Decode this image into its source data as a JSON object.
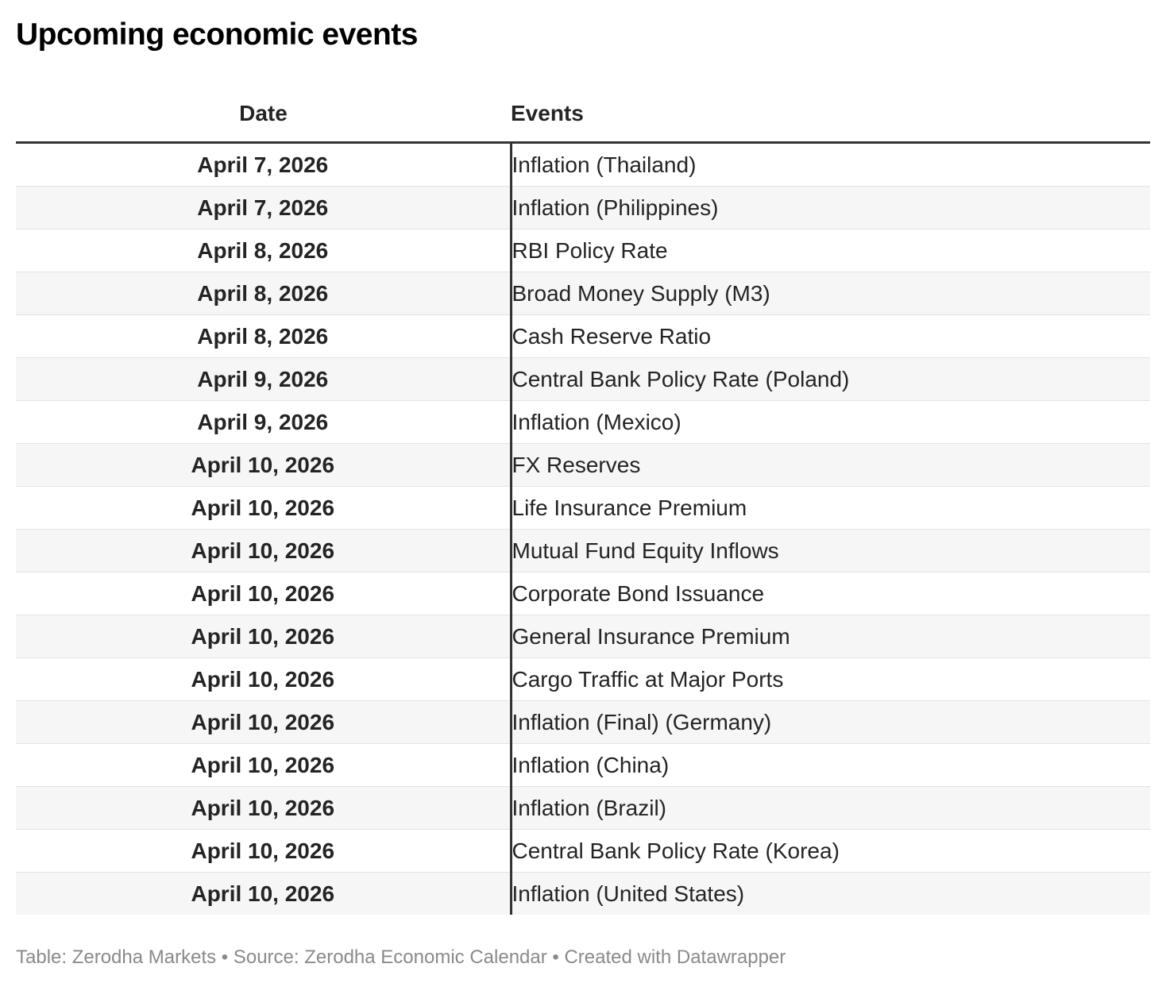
{
  "title": "Upcoming economic events",
  "table": {
    "columns": {
      "date": "Date",
      "events": "Events"
    },
    "rows": [
      {
        "date": "April 7, 2026",
        "event": "Inflation (Thailand)"
      },
      {
        "date": "April 7, 2026",
        "event": "Inflation (Philippines)"
      },
      {
        "date": "April 8, 2026",
        "event": "RBI Policy Rate"
      },
      {
        "date": "April 8, 2026",
        "event": "Broad Money Supply (M3)"
      },
      {
        "date": "April 8, 2026",
        "event": "Cash Reserve Ratio"
      },
      {
        "date": "April 9, 2026",
        "event": "Central Bank Policy Rate (Poland)"
      },
      {
        "date": "April 9, 2026",
        "event": "Inflation (Mexico)"
      },
      {
        "date": "April 10, 2026",
        "event": "FX Reserves"
      },
      {
        "date": "April 10, 2026",
        "event": "Life Insurance Premium"
      },
      {
        "date": "April 10, 2026",
        "event": "Mutual Fund Equity Inflows"
      },
      {
        "date": "April 10, 2026",
        "event": "Corporate Bond Issuance"
      },
      {
        "date": "April 10, 2026",
        "event": "General Insurance Premium"
      },
      {
        "date": "April 10, 2026",
        "event": "Cargo Traffic at Major Ports"
      },
      {
        "date": "April 10, 2026",
        "event": "Inflation (Final) (Germany)"
      },
      {
        "date": "April 10, 2026",
        "event": "Inflation (China)"
      },
      {
        "date": "April 10, 2026",
        "event": "Inflation (Brazil)"
      },
      {
        "date": "April 10, 2026",
        "event": "Central Bank Policy Rate (Korea)"
      },
      {
        "date": "April 10, 2026",
        "event": "Inflation (United States)"
      }
    ]
  },
  "footer": {
    "text": "Table: Zerodha Markets • Source: Zerodha Economic Calendar • Created with Datawrapper"
  },
  "colors": {
    "heavy_border": "#333333",
    "row_divider": "#e3e3e3",
    "row_stripe": "#f6f6f6",
    "text": "#242424",
    "footer_text": "#8a8a8a",
    "background": "#ffffff"
  },
  "chart_data": {
    "type": "table",
    "title": "Upcoming economic events",
    "columns": [
      "Date",
      "Events"
    ],
    "rows": [
      [
        "April 7, 2026",
        "Inflation (Thailand)"
      ],
      [
        "April 7, 2026",
        "Inflation (Philippines)"
      ],
      [
        "April 8, 2026",
        "RBI Policy Rate"
      ],
      [
        "April 8, 2026",
        "Broad Money Supply (M3)"
      ],
      [
        "April 8, 2026",
        "Cash Reserve Ratio"
      ],
      [
        "April 9, 2026",
        "Central Bank Policy Rate (Poland)"
      ],
      [
        "April 9, 2026",
        "Inflation (Mexico)"
      ],
      [
        "April 10, 2026",
        "FX Reserves"
      ],
      [
        "April 10, 2026",
        "Life Insurance Premium"
      ],
      [
        "April 10, 2026",
        "Mutual Fund Equity Inflows"
      ],
      [
        "April 10, 2026",
        "Corporate Bond Issuance"
      ],
      [
        "April 10, 2026",
        "General Insurance Premium"
      ],
      [
        "April 10, 2026",
        "Cargo Traffic at Major Ports"
      ],
      [
        "April 10, 2026",
        "Inflation (Final) (Germany)"
      ],
      [
        "April 10, 2026",
        "Inflation (China)"
      ],
      [
        "April 10, 2026",
        "Inflation (Brazil)"
      ],
      [
        "April 10, 2026",
        "Central Bank Policy Rate (Korea)"
      ],
      [
        "April 10, 2026",
        "Inflation (United States)"
      ]
    ],
    "layout": {
      "date_column_align": "center",
      "events_column_align": "left",
      "striped_rows": true,
      "column_divider": true
    }
  }
}
